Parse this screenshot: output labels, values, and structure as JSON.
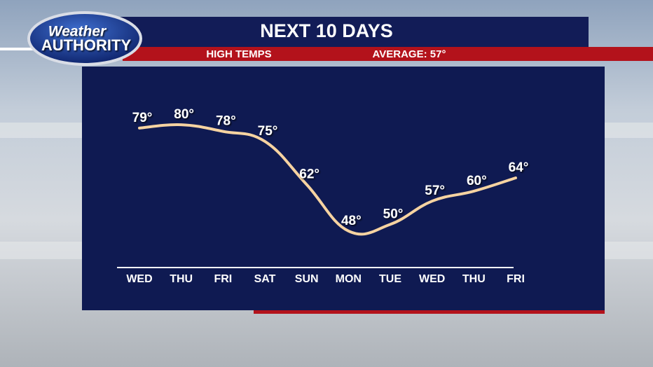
{
  "chart_data": {
    "type": "line",
    "title": "NEXT 10 DAYS",
    "subtitle": "HIGH TEMPS",
    "annotation": "AVERAGE: 57°",
    "logo": {
      "top": "Weather",
      "bottom": "AUTHORITY"
    },
    "categories": [
      "WED",
      "THU",
      "FRI",
      "SAT",
      "SUN",
      "MON",
      "TUE",
      "WED",
      "THU",
      "FRI"
    ],
    "values": [
      79,
      80,
      78,
      75,
      62,
      48,
      50,
      57,
      60,
      64
    ],
    "value_labels": [
      "79°",
      "80°",
      "78°",
      "75°",
      "62°",
      "48°",
      "50°",
      "57°",
      "60°",
      "64°"
    ],
    "color": "#f6d3a1",
    "ylim": [
      37,
      95
    ]
  }
}
